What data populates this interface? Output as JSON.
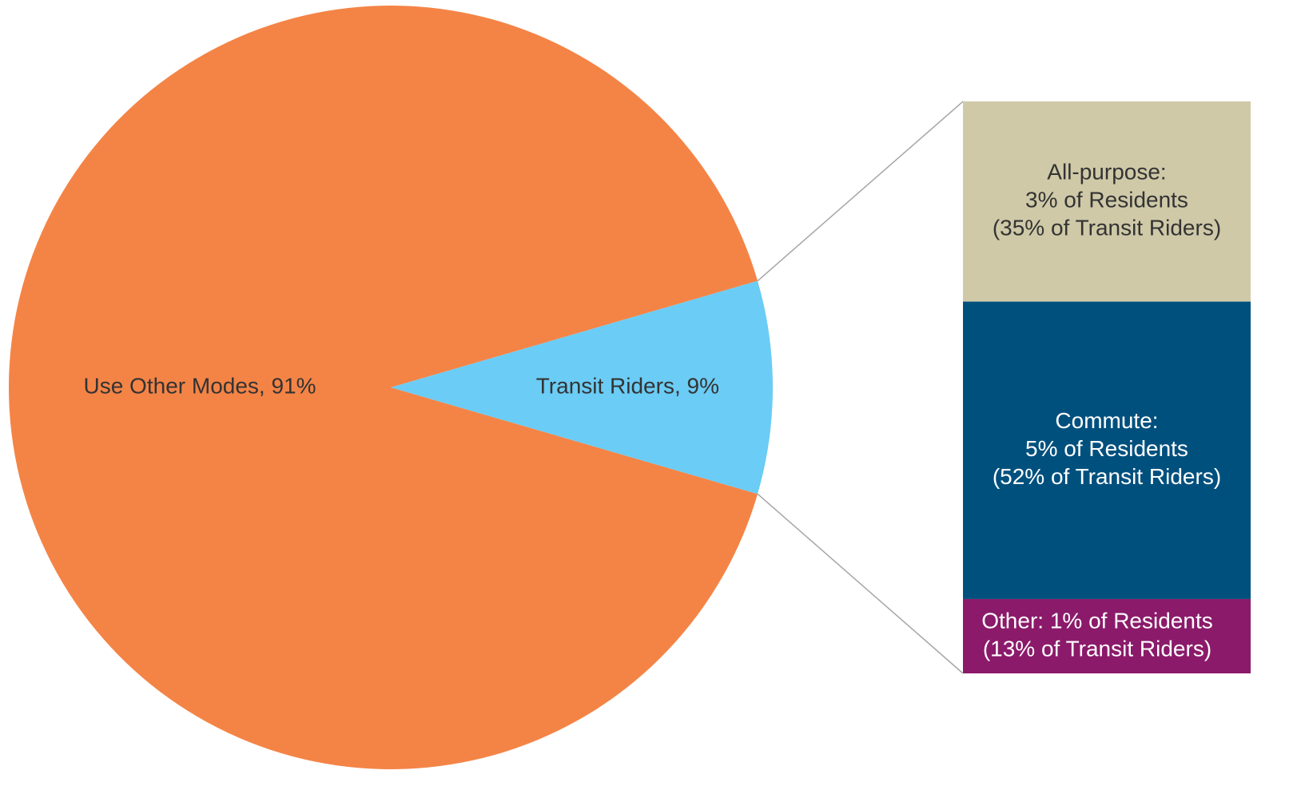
{
  "chart_data": {
    "type": "pie",
    "values": [
      91,
      9
    ],
    "value_labels": [
      "Use Other Modes, 91%",
      "Transit Riders, 9%"
    ],
    "colors": [
      "#f48446",
      "#6bccf5"
    ],
    "breakdown": {
      "values": [
        35,
        52,
        13
      ],
      "value_labels": [
        [
          "All-purpose:",
          "3% of Residents",
          "(35% of Transit Riders)"
        ],
        [
          "Commute:",
          "5% of Residents",
          "(52% of Transit Riders)"
        ],
        [
          "Other: 1% of Residents",
          "(13% of Transit Riders)"
        ]
      ],
      "colors": [
        "#cfc9a8",
        "#00507e",
        "#8b1a6a"
      ],
      "text_colors": [
        "#333333",
        "#ffffff",
        "#ffffff"
      ]
    }
  }
}
